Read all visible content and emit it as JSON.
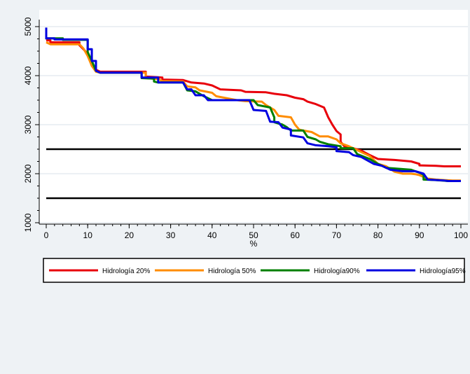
{
  "chart_data": {
    "type": "line",
    "title": "",
    "xlabel": "%",
    "ylabel": "",
    "xlim": [
      0,
      100
    ],
    "ylim": [
      1000,
      5000
    ],
    "xticks": [
      0,
      10,
      20,
      30,
      40,
      50,
      60,
      70,
      80,
      90,
      100
    ],
    "yticks": [
      1000,
      2000,
      3000,
      4000,
      5000
    ],
    "grid": "horizontal",
    "legend_position": "bottom",
    "reference_lines": [
      2500,
      1500
    ],
    "series": [
      {
        "name": "Hidrología 20%",
        "color": "#e8000b",
        "points": [
          [
            0,
            4720
          ],
          [
            1,
            4720
          ],
          [
            1,
            4680
          ],
          [
            8,
            4680
          ],
          [
            8,
            4620
          ],
          [
            10,
            4450
          ],
          [
            11,
            4200
          ],
          [
            12,
            4120
          ],
          [
            13,
            4080
          ],
          [
            24,
            4080
          ],
          [
            24,
            3980
          ],
          [
            28,
            3960
          ],
          [
            28,
            3920
          ],
          [
            33,
            3910
          ],
          [
            35,
            3860
          ],
          [
            38,
            3840
          ],
          [
            40,
            3800
          ],
          [
            42,
            3720
          ],
          [
            47,
            3700
          ],
          [
            48,
            3670
          ],
          [
            53,
            3660
          ],
          [
            55,
            3630
          ],
          [
            58,
            3600
          ],
          [
            60,
            3550
          ],
          [
            62,
            3520
          ],
          [
            63,
            3470
          ],
          [
            65,
            3420
          ],
          [
            67,
            3350
          ],
          [
            68,
            3150
          ],
          [
            69,
            3000
          ],
          [
            70,
            2870
          ],
          [
            71,
            2800
          ],
          [
            71,
            2650
          ],
          [
            72,
            2550
          ],
          [
            74,
            2520
          ],
          [
            76,
            2470
          ],
          [
            78,
            2380
          ],
          [
            80,
            2300
          ],
          [
            84,
            2280
          ],
          [
            88,
            2250
          ],
          [
            90,
            2200
          ],
          [
            90,
            2170
          ],
          [
            94,
            2160
          ],
          [
            96,
            2150
          ],
          [
            100,
            2150
          ]
        ]
      },
      {
        "name": "Hidrología 50%",
        "color": "#ff8c00",
        "points": [
          [
            0,
            4680
          ],
          [
            1,
            4640
          ],
          [
            8,
            4640
          ],
          [
            9,
            4550
          ],
          [
            10,
            4400
          ],
          [
            11,
            4200
          ],
          [
            12,
            4080
          ],
          [
            13,
            4060
          ],
          [
            24,
            4060
          ],
          [
            24,
            3950
          ],
          [
            27,
            3930
          ],
          [
            28,
            3890
          ],
          [
            33,
            3880
          ],
          [
            34,
            3780
          ],
          [
            36,
            3760
          ],
          [
            37,
            3700
          ],
          [
            40,
            3650
          ],
          [
            41,
            3580
          ],
          [
            46,
            3500
          ],
          [
            48,
            3480
          ],
          [
            52,
            3470
          ],
          [
            53,
            3400
          ],
          [
            55,
            3300
          ],
          [
            56,
            3180
          ],
          [
            59,
            3150
          ],
          [
            60,
            3000
          ],
          [
            61,
            2900
          ],
          [
            62,
            2880
          ],
          [
            64,
            2850
          ],
          [
            66,
            2760
          ],
          [
            68,
            2760
          ],
          [
            70,
            2700
          ],
          [
            71,
            2620
          ],
          [
            73,
            2560
          ],
          [
            76,
            2440
          ],
          [
            78,
            2360
          ],
          [
            80,
            2200
          ],
          [
            82,
            2150
          ],
          [
            84,
            2040
          ],
          [
            86,
            2000
          ],
          [
            88,
            2000
          ],
          [
            89,
            1990
          ],
          [
            90,
            1970
          ],
          [
            92,
            1900
          ],
          [
            94,
            1880
          ],
          [
            96,
            1870
          ],
          [
            98,
            1860
          ],
          [
            100,
            1860
          ]
        ]
      },
      {
        "name": "Hidrología90%",
        "color": "#007f00",
        "points": [
          [
            0,
            4740
          ],
          [
            0,
            4760
          ],
          [
            4,
            4760
          ],
          [
            4,
            4730
          ],
          [
            10,
            4730
          ],
          [
            10,
            4480
          ],
          [
            11,
            4300
          ],
          [
            12,
            4100
          ],
          [
            13,
            4060
          ],
          [
            23,
            4060
          ],
          [
            23,
            3950
          ],
          [
            26,
            3940
          ],
          [
            26,
            3880
          ],
          [
            27,
            3860
          ],
          [
            33,
            3860
          ],
          [
            34,
            3700
          ],
          [
            36,
            3680
          ],
          [
            38,
            3580
          ],
          [
            40,
            3500
          ],
          [
            50,
            3500
          ],
          [
            51,
            3400
          ],
          [
            54,
            3350
          ],
          [
            55,
            3150
          ],
          [
            55,
            3050
          ],
          [
            57,
            3000
          ],
          [
            58,
            2950
          ],
          [
            59,
            2880
          ],
          [
            62,
            2880
          ],
          [
            63,
            2750
          ],
          [
            65,
            2700
          ],
          [
            66,
            2650
          ],
          [
            68,
            2600
          ],
          [
            71,
            2560
          ],
          [
            71,
            2520
          ],
          [
            74,
            2520
          ],
          [
            75,
            2400
          ],
          [
            78,
            2300
          ],
          [
            80,
            2200
          ],
          [
            82,
            2120
          ],
          [
            85,
            2100
          ],
          [
            88,
            2080
          ],
          [
            90,
            2020
          ],
          [
            91,
            1980
          ],
          [
            91,
            1880
          ],
          [
            94,
            1870
          ],
          [
            97,
            1850
          ],
          [
            100,
            1850
          ]
        ]
      },
      {
        "name": "Hidrología95%",
        "color": "#0000e0",
        "points": [
          [
            0,
            4980
          ],
          [
            0,
            4760
          ],
          [
            2,
            4760
          ],
          [
            2,
            4740
          ],
          [
            10,
            4740
          ],
          [
            10,
            4540
          ],
          [
            11,
            4540
          ],
          [
            11,
            4300
          ],
          [
            12,
            4300
          ],
          [
            12,
            4100
          ],
          [
            13,
            4060
          ],
          [
            23,
            4060
          ],
          [
            23,
            3960
          ],
          [
            27,
            3960
          ],
          [
            27,
            3860
          ],
          [
            33,
            3860
          ],
          [
            34,
            3720
          ],
          [
            35,
            3720
          ],
          [
            36,
            3600
          ],
          [
            38,
            3600
          ],
          [
            39,
            3500
          ],
          [
            49,
            3500
          ],
          [
            50,
            3300
          ],
          [
            53,
            3280
          ],
          [
            54,
            3060
          ],
          [
            56,
            3050
          ],
          [
            57,
            2940
          ],
          [
            59,
            2900
          ],
          [
            59,
            2780
          ],
          [
            62,
            2740
          ],
          [
            63,
            2620
          ],
          [
            65,
            2580
          ],
          [
            68,
            2560
          ],
          [
            70,
            2540
          ],
          [
            70,
            2460
          ],
          [
            73,
            2440
          ],
          [
            74,
            2380
          ],
          [
            76,
            2340
          ],
          [
            79,
            2200
          ],
          [
            81,
            2160
          ],
          [
            83,
            2080
          ],
          [
            86,
            2050
          ],
          [
            89,
            2050
          ],
          [
            91,
            2000
          ],
          [
            92,
            1880
          ],
          [
            96,
            1860
          ],
          [
            97,
            1850
          ],
          [
            100,
            1850
          ]
        ]
      }
    ]
  }
}
